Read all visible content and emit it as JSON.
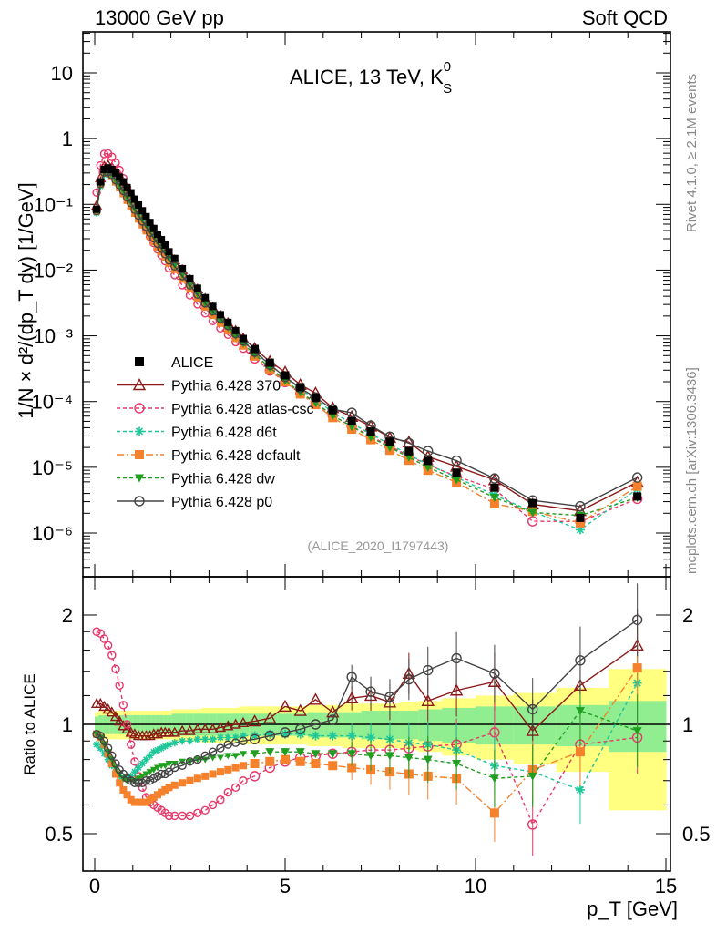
{
  "header": {
    "left": "13000 GeV pp",
    "right": "Soft QCD"
  },
  "side_labels": {
    "rivet": "Rivet 4.1.0, ≥ 2.1M events",
    "mcplots": "mcplots.cern.ch [arXiv:1306.3436]"
  },
  "chart_data": [
    {
      "type": "line",
      "title": "ALICE, 13 TeV, K",
      "title_sup": "0",
      "title_sub": "S",
      "yscale": "log",
      "ylabel": "1/N × d²/(dp_T dy) [1/GeV]",
      "xlim": [
        -0.5,
        15.3
      ],
      "ylim": [
        2.2e-07,
        40
      ],
      "ytick_labels": [
        "10",
        "1",
        "10⁻¹",
        "10⁻²",
        "10⁻³",
        "10⁻⁴",
        "10⁻⁵",
        "10⁻⁶"
      ],
      "ytick_values": [
        10,
        1,
        0.1,
        0.01,
        0.001,
        0.0001,
        1e-05,
        1e-06
      ],
      "watermark": "(ALICE_2020_I1797443)",
      "legend_position": "lower-left",
      "x": [
        0.05,
        0.15,
        0.25,
        0.35,
        0.45,
        0.55,
        0.65,
        0.75,
        0.85,
        0.95,
        1.05,
        1.15,
        1.25,
        1.35,
        1.45,
        1.55,
        1.65,
        1.75,
        1.85,
        1.95,
        2.1,
        2.3,
        2.5,
        2.7,
        2.9,
        3.1,
        3.3,
        3.5,
        3.7,
        3.9,
        4.2,
        4.6,
        5.0,
        5.4,
        5.8,
        6.25,
        6.75,
        7.25,
        7.75,
        8.25,
        8.75,
        9.5,
        10.5,
        11.5,
        12.75,
        14.25
      ],
      "series": [
        {
          "name": "ALICE",
          "color": "#000000",
          "marker": "square-filled",
          "dash": "none",
          "values": [
            0.084,
            0.22,
            0.34,
            0.36,
            0.34,
            0.3,
            0.26,
            0.22,
            0.18,
            0.15,
            0.12,
            0.098,
            0.08,
            0.065,
            0.053,
            0.043,
            0.035,
            0.029,
            0.024,
            0.019,
            0.015,
            0.0105,
            0.0074,
            0.0053,
            0.0038,
            0.0028,
            0.0021,
            0.0016,
            0.0012,
            0.00091,
            0.00063,
            0.00039,
            0.00025,
            0.000165,
            0.000115,
            7.4e-05,
            5e-05,
            3.5e-05,
            2.45e-05,
            1.75e-05,
            1.25e-05,
            8.3e-06,
            4.9e-06,
            2.85e-06,
            1.7e-06,
            3.6e-06
          ]
        },
        {
          "name": "Pythia 6.428 370",
          "color": "#8b1a1a",
          "marker": "triangle-open",
          "dash": "none",
          "ratio": [
            1.14,
            1.14,
            1.12,
            1.1,
            1.08,
            1.05,
            1.02,
            0.99,
            0.97,
            0.95,
            0.94,
            0.93,
            0.93,
            0.93,
            0.93,
            0.94,
            0.94,
            0.95,
            0.95,
            0.95,
            0.95,
            0.96,
            0.96,
            0.97,
            0.97,
            0.97,
            0.98,
            0.99,
            1.0,
            1.01,
            1.02,
            1.04,
            1.12,
            1.09,
            1.17,
            1.08,
            1.18,
            1.2,
            1.15,
            1.38,
            1.16,
            1.24,
            1.31,
            0.96,
            1.28,
            1.65
          ]
        },
        {
          "name": "Pythia 6.428 atlas-csc",
          "color": "#e8386a",
          "marker": "circle-open",
          "dash": "4,3",
          "ratio": [
            1.8,
            1.78,
            1.72,
            1.65,
            1.55,
            1.42,
            1.28,
            1.13,
            1.0,
            0.88,
            0.79,
            0.72,
            0.67,
            0.63,
            0.61,
            0.6,
            0.59,
            0.58,
            0.57,
            0.56,
            0.56,
            0.56,
            0.56,
            0.57,
            0.58,
            0.6,
            0.62,
            0.65,
            0.67,
            0.7,
            0.72,
            0.76,
            0.79,
            0.81,
            0.82,
            0.83,
            0.84,
            0.85,
            0.85,
            0.86,
            0.87,
            0.88,
            0.95,
            0.53,
            0.88,
            0.92
          ]
        },
        {
          "name": "Pythia 6.428 d6t",
          "color": "#1fc79a",
          "marker": "star",
          "dash": "4,3",
          "ratio": [
            0.88,
            0.86,
            0.83,
            0.8,
            0.77,
            0.74,
            0.72,
            0.71,
            0.71,
            0.72,
            0.74,
            0.76,
            0.78,
            0.8,
            0.82,
            0.84,
            0.85,
            0.86,
            0.87,
            0.88,
            0.89,
            0.9,
            0.9,
            0.91,
            0.91,
            0.91,
            0.92,
            0.92,
            0.92,
            0.93,
            0.93,
            0.94,
            0.94,
            0.94,
            0.93,
            0.93,
            0.93,
            0.92,
            0.91,
            0.89,
            0.88,
            0.85,
            0.77,
            0.74,
            0.66,
            1.3
          ]
        },
        {
          "name": "Pythia 6.428 default",
          "color": "#f5812c",
          "marker": "square-filled",
          "dash": "8,3,2,3",
          "ratio": [
            0.94,
            0.92,
            0.88,
            0.83,
            0.78,
            0.73,
            0.69,
            0.66,
            0.64,
            0.62,
            0.61,
            0.61,
            0.61,
            0.61,
            0.62,
            0.63,
            0.64,
            0.65,
            0.66,
            0.67,
            0.68,
            0.69,
            0.7,
            0.71,
            0.72,
            0.73,
            0.74,
            0.75,
            0.76,
            0.77,
            0.78,
            0.79,
            0.8,
            0.79,
            0.78,
            0.77,
            0.76,
            0.75,
            0.74,
            0.73,
            0.72,
            0.71,
            0.57,
            0.75,
            0.84,
            1.43
          ]
        },
        {
          "name": "Pythia 6.428 dw",
          "color": "#1f9e1f",
          "marker": "triangle-down-filled",
          "dash": "4,3",
          "ratio": [
            0.94,
            0.92,
            0.88,
            0.84,
            0.8,
            0.76,
            0.73,
            0.71,
            0.7,
            0.7,
            0.7,
            0.71,
            0.72,
            0.73,
            0.74,
            0.75,
            0.76,
            0.77,
            0.77,
            0.78,
            0.78,
            0.79,
            0.79,
            0.8,
            0.8,
            0.81,
            0.81,
            0.82,
            0.82,
            0.83,
            0.83,
            0.84,
            0.84,
            0.84,
            0.83,
            0.83,
            0.83,
            0.82,
            0.82,
            0.81,
            0.8,
            0.78,
            0.71,
            0.72,
            1.09,
            0.96
          ]
        },
        {
          "name": "Pythia 6.428 p0",
          "color": "#444444",
          "marker": "circle-open",
          "dash": "none",
          "ratio": [
            0.94,
            0.93,
            0.9,
            0.86,
            0.82,
            0.78,
            0.75,
            0.73,
            0.71,
            0.7,
            0.69,
            0.69,
            0.69,
            0.7,
            0.7,
            0.71,
            0.72,
            0.73,
            0.73,
            0.74,
            0.76,
            0.77,
            0.79,
            0.8,
            0.82,
            0.84,
            0.86,
            0.88,
            0.89,
            0.9,
            0.91,
            0.93,
            0.95,
            0.97,
            1.0,
            1.03,
            1.35,
            1.23,
            1.19,
            1.33,
            1.41,
            1.52,
            1.38,
            1.1,
            1.5,
            1.94
          ]
        }
      ]
    },
    {
      "type": "line",
      "ylabel": "Ratio to ALICE",
      "xlabel": "p_T [GeV]",
      "yscale": "log",
      "ylim": [
        0.42,
        2.6
      ],
      "xticks": [
        0,
        5,
        10,
        15
      ],
      "xtick_labels": [
        "0",
        "5",
        "10",
        "15"
      ],
      "ytick_labels": [
        "2",
        "1",
        "0.5"
      ],
      "ytick_values": [
        2,
        1,
        0.5
      ],
      "band_inner_color": "#90ee90",
      "band_outer_color": "#ffff80",
      "band_inner": [
        0.05,
        0.06,
        0.06,
        0.06,
        0.06,
        0.06,
        0.06,
        0.06,
        0.06,
        0.06,
        0.06,
        0.06,
        0.06,
        0.06,
        0.06,
        0.06,
        0.06,
        0.06,
        0.06,
        0.06,
        0.07,
        0.07,
        0.07,
        0.07,
        0.07,
        0.07,
        0.07,
        0.07,
        0.07,
        0.07,
        0.07,
        0.07,
        0.07,
        0.07,
        0.08,
        0.08,
        0.08,
        0.09,
        0.09,
        0.09,
        0.1,
        0.11,
        0.12,
        0.12,
        0.13,
        0.16
      ],
      "band_outer": [
        0.08,
        0.09,
        0.09,
        0.09,
        0.09,
        0.09,
        0.09,
        0.09,
        0.09,
        0.09,
        0.09,
        0.09,
        0.09,
        0.09,
        0.09,
        0.09,
        0.09,
        0.09,
        0.09,
        0.09,
        0.1,
        0.1,
        0.1,
        0.1,
        0.11,
        0.11,
        0.11,
        0.11,
        0.11,
        0.12,
        0.12,
        0.12,
        0.12,
        0.12,
        0.13,
        0.13,
        0.14,
        0.14,
        0.14,
        0.15,
        0.16,
        0.18,
        0.2,
        0.22,
        0.26,
        0.42
      ]
    }
  ]
}
